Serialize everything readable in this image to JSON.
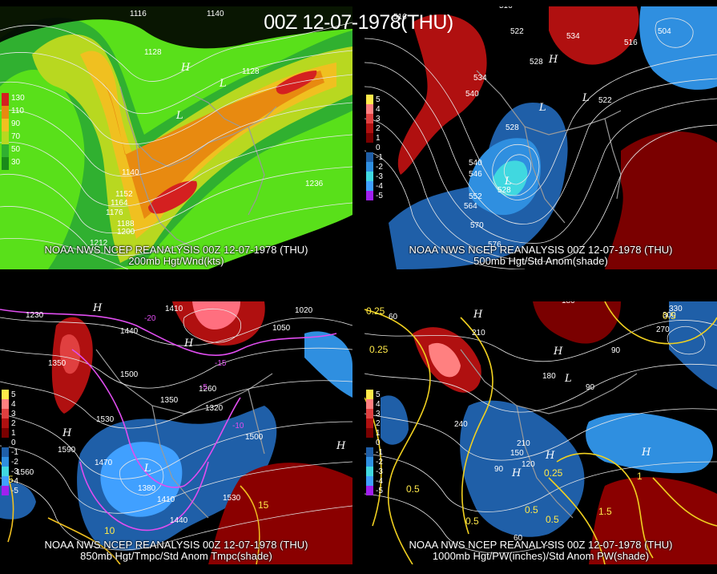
{
  "main_title": "00Z 12-07-1978(THU)",
  "panels": {
    "top_left": {
      "caption_line1": "NOAA NWS NCEP REANALYSIS 00Z 12-07-1978 (THU)",
      "caption_line2": "200mb Hgt/Wnd(kts)",
      "legend": [
        {
          "label": "130",
          "color": "#d42020"
        },
        {
          "label": "110",
          "color": "#e88a10"
        },
        {
          "label": "90",
          "color": "#f0c020"
        },
        {
          "label": "70",
          "color": "#b8d820"
        },
        {
          "label": "50",
          "color": "#30b030"
        },
        {
          "label": "30",
          "color": "#1a8a1a"
        }
      ],
      "contour_labels": [
        "1116",
        "1140",
        "1128",
        "1128",
        "1140",
        "1152",
        "1164",
        "1176",
        "1188",
        "1200",
        "1212",
        "1236"
      ],
      "centers": [
        "H",
        "L",
        "L"
      ]
    },
    "top_right": {
      "caption_line1": "NOAA NWS NCEP REANALYSIS 00Z 12-07-1978 (THU)",
      "caption_line2": "500mb Hgt/Std Anom(shade)",
      "legend": [
        {
          "label": "5",
          "color": "#ffe94a"
        },
        {
          "label": "4",
          "color": "#ff8080"
        },
        {
          "label": "3",
          "color": "#e04040"
        },
        {
          "label": "2",
          "color": "#b01010"
        },
        {
          "label": "1",
          "color": "#7a0000"
        },
        {
          "label": "0",
          "color": "#000000"
        },
        {
          "label": "-1",
          "color": "#1f5fa8"
        },
        {
          "label": "-2",
          "color": "#2f8fe0"
        },
        {
          "label": "-3",
          "color": "#40d8e0"
        },
        {
          "label": "-4",
          "color": "#40a0ff"
        },
        {
          "label": "-5",
          "color": "#a020f0"
        }
      ],
      "contour_labels": [
        "516",
        "516",
        "522",
        "534",
        "540",
        "528",
        "534",
        "522",
        "528",
        "540",
        "528",
        "546",
        "552",
        "564",
        "570",
        "576",
        "504",
        "516"
      ],
      "centers": [
        "H",
        "L",
        "L",
        "L"
      ]
    },
    "bottom_left": {
      "caption_line1": "NOAA NWS NCEP REANALYSIS 00Z 12-07-1978 (THU)",
      "caption_line2": "850mb Hgt/Tmpc/Std Anom Tmpc(shade)",
      "legend": [
        {
          "label": "5",
          "color": "#ffe94a"
        },
        {
          "label": "4",
          "color": "#ff8080"
        },
        {
          "label": "3",
          "color": "#e04040"
        },
        {
          "label": "2",
          "color": "#b01010"
        },
        {
          "label": "1",
          "color": "#7a0000"
        },
        {
          "label": "0",
          "color": "#000000"
        },
        {
          "label": "-1",
          "color": "#1f5fa8"
        },
        {
          "label": "-2",
          "color": "#2f8fe0"
        },
        {
          "label": "-3",
          "color": "#40d8e0"
        },
        {
          "label": "-4",
          "color": "#40a0ff"
        },
        {
          "label": "-5",
          "color": "#a020f0"
        }
      ],
      "contour_labels": [
        "1230",
        "1410",
        "1440",
        "1350",
        "1500",
        "1530",
        "1590",
        "1470",
        "1380",
        "1410",
        "1440",
        "1530",
        "1500",
        "1350",
        "1320",
        "1260",
        "1020",
        "1050",
        "1560"
      ],
      "temp_labels": [
        "-20",
        "-15",
        "-10",
        "-5",
        "5",
        "10",
        "15"
      ],
      "centers": [
        "H",
        "H",
        "H",
        "L",
        "H"
      ]
    },
    "bottom_right": {
      "caption_line1": "NOAA NWS NCEP REANALYSIS 00Z 12-07-1978 (THU)",
      "caption_line2": "1000mb Hgt/PW(inches)/Std Anom PW(shade)",
      "legend": [
        {
          "label": "5",
          "color": "#ffe94a"
        },
        {
          "label": "4",
          "color": "#ff8080"
        },
        {
          "label": "3",
          "color": "#e04040"
        },
        {
          "label": "2",
          "color": "#b01010"
        },
        {
          "label": "1",
          "color": "#7a0000"
        },
        {
          "label": "0",
          "color": "#000000"
        },
        {
          "label": "-1",
          "color": "#1f5fa8"
        },
        {
          "label": "-2",
          "color": "#2f8fe0"
        },
        {
          "label": "-3",
          "color": "#40d8e0"
        },
        {
          "label": "-4",
          "color": "#40a0ff"
        },
        {
          "label": "-5",
          "color": "#a020f0"
        }
      ],
      "contour_labels": [
        "180",
        "210",
        "90",
        "180",
        "240",
        "210",
        "150",
        "120",
        "90",
        "60",
        "90",
        "300",
        "270",
        "60",
        "330"
      ],
      "pw_labels": [
        "0.25",
        "0.25",
        "0.5",
        "0.5",
        "0.5",
        "0.5",
        "0.25",
        "1",
        "1.5",
        "0.5"
      ],
      "centers": [
        "H",
        "H",
        "L",
        "H",
        "H",
        "H"
      ]
    }
  }
}
